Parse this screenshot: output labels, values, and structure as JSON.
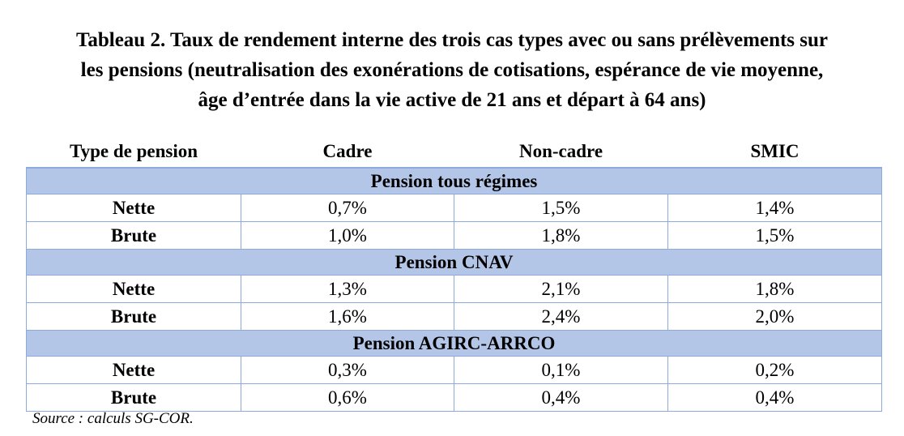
{
  "title": {
    "line1": "Tableau 2. Taux de rendement interne des trois cas types avec ou sans prélèvements sur",
    "line2": "les pensions (neutralisation des exonérations de cotisations, espérance de vie moyenne,",
    "line3": "âge d’entrée dans la vie active de 21 ans et départ à 64 ans)"
  },
  "table": {
    "headers": [
      "Type de pension",
      "Cadre",
      "Non-cadre",
      "SMIC"
    ],
    "sections": [
      {
        "label": "Pension tous régimes",
        "rows": [
          {
            "label": "Nette",
            "values": [
              "0,7%",
              "1,5%",
              "1,4%"
            ]
          },
          {
            "label": "Brute",
            "values": [
              "1,0%",
              "1,8%",
              "1,5%"
            ]
          }
        ]
      },
      {
        "label": "Pension CNAV",
        "rows": [
          {
            "label": "Nette",
            "values": [
              "1,3%",
              "2,1%",
              "1,8%"
            ]
          },
          {
            "label": "Brute",
            "values": [
              "1,6%",
              "2,4%",
              "2,0%"
            ]
          }
        ]
      },
      {
        "label": "Pension AGIRC-ARRCO",
        "rows": [
          {
            "label": "Nette",
            "values": [
              "0,3%",
              "0,1%",
              "0,2%"
            ]
          },
          {
            "label": "Brute",
            "values": [
              "0,6%",
              "0,4%",
              "0,4%"
            ]
          }
        ]
      }
    ]
  },
  "source": "Source : calculs SG-COR.",
  "colors": {
    "section_fill": "#b4c6e7",
    "border": "#8ea9db"
  }
}
